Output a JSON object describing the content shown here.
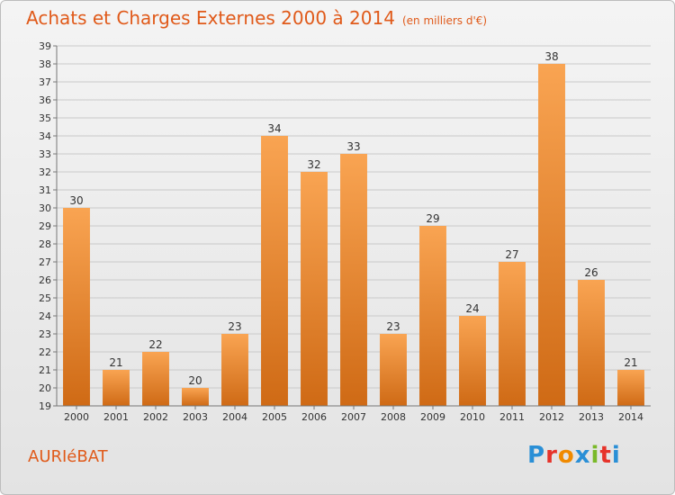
{
  "header": {
    "title": "Achats et Charges Externes 2000 à 2014",
    "subtitle": "(en milliers d'€)"
  },
  "footer": {
    "commune": "AURIéBAT",
    "logo_text": "Proxiti",
    "logo_colors": [
      "#2a8fd6",
      "#e6332a",
      "#f08a00",
      "#2a8fd6",
      "#7ab929",
      "#e6332a",
      "#2a8fd6"
    ]
  },
  "colors": {
    "bar_light": "#f9a452",
    "bar_dark": "#cf6a15",
    "title": "#e05a1a",
    "grid": "#c9c9c9"
  },
  "chart_data": {
    "type": "bar",
    "title": "Achats et Charges Externes 2000 à 2014",
    "subtitle": "(en milliers d'€)",
    "categories": [
      "2000",
      "2001",
      "2002",
      "2003",
      "2004",
      "2005",
      "2006",
      "2007",
      "2008",
      "2009",
      "2010",
      "2011",
      "2012",
      "2013",
      "2014"
    ],
    "values": [
      30,
      21,
      22,
      20,
      23,
      34,
      32,
      33,
      23,
      29,
      24,
      27,
      38,
      26,
      21
    ],
    "ylim": [
      19,
      39
    ],
    "ytick_step": 1,
    "grid": true,
    "data_labels": true
  }
}
